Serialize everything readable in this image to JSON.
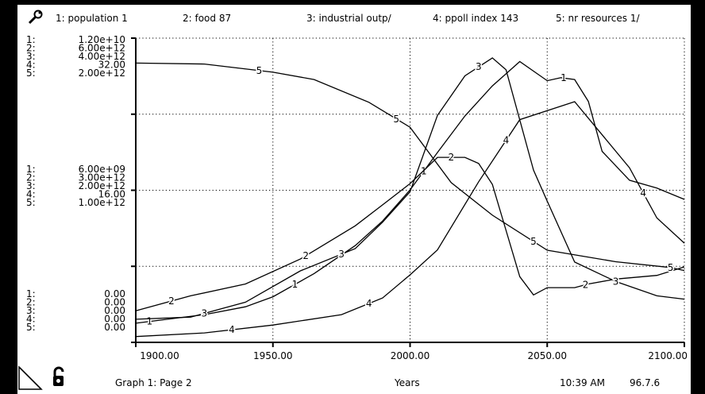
{
  "legend": [
    {
      "num": "1",
      "label": "1: population 1"
    },
    {
      "num": "2",
      "label": "2: food 87"
    },
    {
      "num": "3",
      "label": "3: industrial outp/"
    },
    {
      "num": "4",
      "label": "4: ppoll index 143"
    },
    {
      "num": "5",
      "label": "5: nr resources 1/"
    }
  ],
  "footer": {
    "graph_page": "Graph 1: Page 2",
    "x_label": "Years",
    "time": "10:39 AM",
    "date": "96.7.6"
  },
  "icons": [
    "wrench-icon",
    "resize-corner-icon",
    "unlocked-padlock-icon"
  ],
  "chart_data": {
    "type": "line",
    "xlabel": "Years",
    "xlim": [
      1900,
      2100
    ],
    "x_ticks": [
      "1900.00",
      "1950.00",
      "2000.00",
      "2050.00",
      "2100.00"
    ],
    "grid": true,
    "y_axis_labels": {
      "top": [
        {
          "idx": "1:",
          "val": "1.20e+10"
        },
        {
          "idx": "2:",
          "val": "6.00e+12"
        },
        {
          "idx": "3:",
          "val": "4.00e+12"
        },
        {
          "idx": "4:",
          "val": "32.00"
        },
        {
          "idx": "5:",
          "val": "2.00e+12"
        }
      ],
      "mid": [
        {
          "idx": "1:",
          "val": "6.00e+09"
        },
        {
          "idx": "2:",
          "val": "3.00e+12"
        },
        {
          "idx": "3:",
          "val": "2.00e+12"
        },
        {
          "idx": "4:",
          "val": "16.00"
        },
        {
          "idx": "5:",
          "val": "1.00e+12"
        }
      ],
      "bottom": [
        {
          "idx": "1:",
          "val": "0.00"
        },
        {
          "idx": "2:",
          "val": "0.00"
        },
        {
          "idx": "3:",
          "val": "0.00"
        },
        {
          "idx": "4:",
          "val": "0.00"
        },
        {
          "idx": "5:",
          "val": "0.00"
        }
      ]
    },
    "series": [
      {
        "id": "1",
        "name": "population",
        "x": [
          1900,
          1925,
          1940,
          1950,
          1965,
          1980,
          1990,
          2000,
          2010,
          2020,
          2030,
          2040,
          2050,
          2055,
          2060,
          2065,
          2070,
          2080,
          2090,
          2100
        ],
        "y": [
          0.063,
          0.091,
          0.117,
          0.15,
          0.226,
          0.318,
          0.399,
          0.501,
          0.624,
          0.744,
          0.843,
          0.923,
          0.86,
          0.87,
          0.864,
          0.792,
          0.628,
          0.533,
          0.507,
          0.47
        ]
      },
      {
        "id": "2",
        "name": "food",
        "x": [
          1900,
          1920,
          1940,
          1960,
          1980,
          1990,
          2000,
          2005,
          2010,
          2020,
          2025,
          2030,
          2040,
          2045,
          2050,
          2060,
          2065,
          2075,
          2090,
          2100
        ],
        "y": [
          0.104,
          0.153,
          0.192,
          0.274,
          0.383,
          0.452,
          0.522,
          0.565,
          0.608,
          0.608,
          0.588,
          0.519,
          0.216,
          0.156,
          0.18,
          0.18,
          0.192,
          0.208,
          0.22,
          0.248
        ]
      },
      {
        "id": "3",
        "name": "industrial output",
        "x": [
          1900,
          1920,
          1940,
          1960,
          1980,
          1990,
          2000,
          2010,
          2020,
          2030,
          2035,
          2045,
          2050,
          2060,
          2075,
          2090,
          2100
        ],
        "y": [
          0.076,
          0.083,
          0.132,
          0.235,
          0.308,
          0.395,
          0.495,
          0.746,
          0.876,
          0.935,
          0.896,
          0.566,
          0.464,
          0.264,
          0.2,
          0.153,
          0.142
        ]
      },
      {
        "id": "4",
        "name": "persistent pollution index",
        "x": [
          1900,
          1925,
          1950,
          1975,
          1990,
          2000,
          2010,
          2025,
          2040,
          2060,
          2080,
          2090,
          2100
        ],
        "y": [
          0.019,
          0.031,
          0.057,
          0.091,
          0.146,
          0.222,
          0.304,
          0.528,
          0.732,
          0.791,
          0.574,
          0.409,
          0.326
        ]
      },
      {
        "id": "5",
        "name": "nonrenewable resources",
        "x": [
          1900,
          1925,
          1950,
          1965,
          1985,
          2000,
          2015,
          2030,
          2050,
          2075,
          2095,
          2100
        ],
        "y": [
          0.918,
          0.915,
          0.888,
          0.864,
          0.789,
          0.707,
          0.525,
          0.418,
          0.303,
          0.265,
          0.246,
          0.236
        ]
      }
    ]
  }
}
